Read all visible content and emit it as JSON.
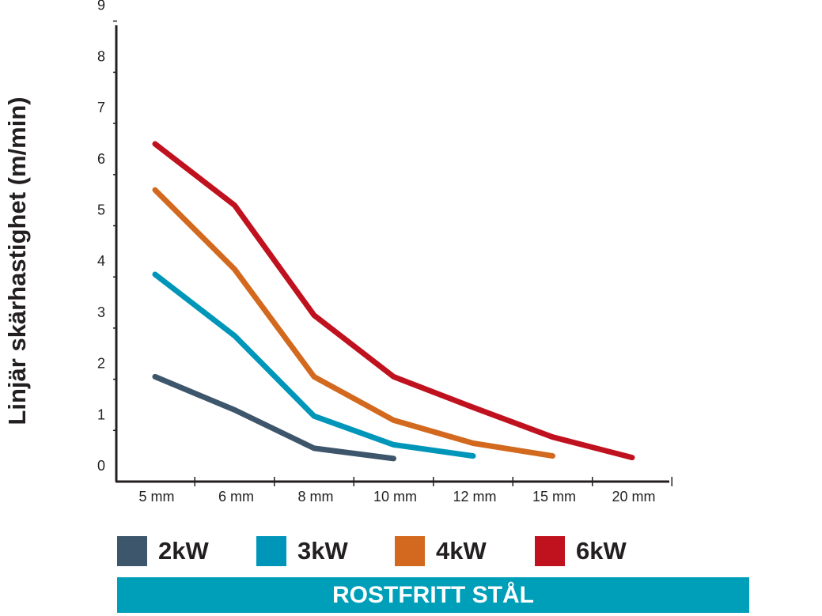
{
  "chart_data": {
    "type": "line",
    "categories": [
      "5 mm",
      "6 mm",
      "8 mm",
      "10 mm",
      "12 mm",
      "15 mm",
      "20 mm"
    ],
    "ylabel": "Linjär skärhastighet (m/min)",
    "ylim": [
      0,
      9
    ],
    "yticks": [
      "0",
      "1",
      "2",
      "3",
      "4",
      "5",
      "6",
      "7",
      "8",
      "9"
    ],
    "grid": false,
    "legend_position": "bottom",
    "series": [
      {
        "name": "2kW",
        "color": "#3e566b",
        "values": [
          2.05,
          1.4,
          0.65,
          0.45,
          null,
          null,
          null
        ]
      },
      {
        "name": "3kW",
        "color": "#0096b9",
        "values": [
          4.05,
          2.85,
          1.28,
          0.72,
          0.5,
          null,
          null
        ]
      },
      {
        "name": "4kW",
        "color": "#d2691e",
        "values": [
          5.7,
          4.15,
          2.05,
          1.2,
          0.75,
          0.5,
          null
        ]
      },
      {
        "name": "6kW",
        "color": "#c0111f",
        "values": [
          6.6,
          5.4,
          3.25,
          2.05,
          1.45,
          0.87,
          0.47
        ]
      }
    ]
  },
  "banner": {
    "text": "ROSTFRITT STÅL",
    "color": "#009fb9"
  }
}
